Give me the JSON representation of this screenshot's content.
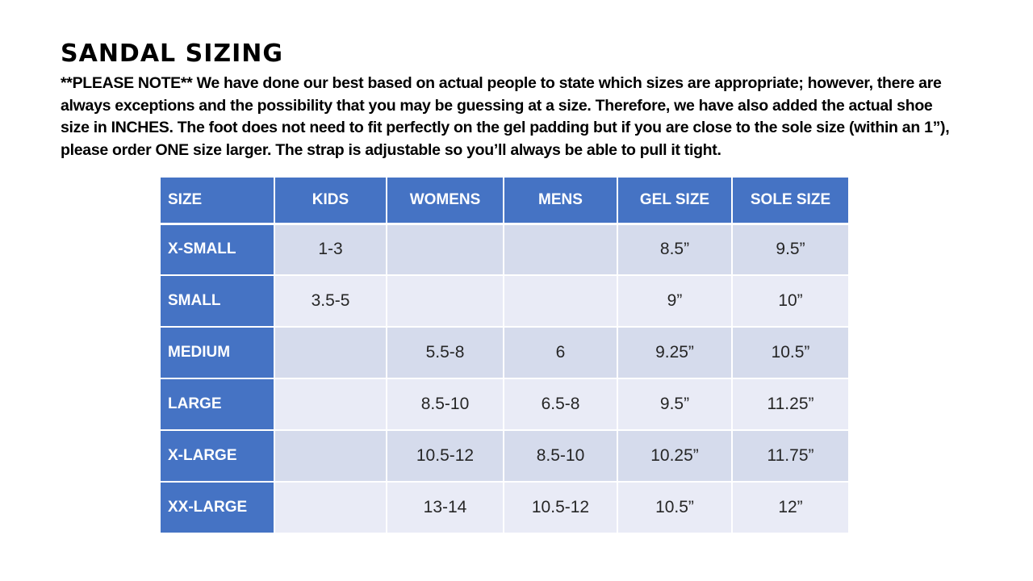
{
  "page": {
    "title": "SANDAL SIZING",
    "note": "**PLEASE NOTE**  We have done our best based on actual people to state which sizes are appropriate; however, there are always exceptions and the possibility that you may be guessing at a size.  Therefore, we have also added the actual shoe size in INCHES.  The foot does not need to fit perfectly on the gel padding but if you are close to the sole size (within an 1”), please order ONE size larger.  The strap is adjustable so you’ll always be able to pull it tight."
  },
  "table": {
    "headers": [
      "SIZE",
      "KIDS",
      "WOMENS",
      "MENS",
      "GEL SIZE",
      "SOLE SIZE"
    ],
    "rows": [
      {
        "size": "X-SMALL",
        "kids": "1-3",
        "womens": "",
        "mens": "",
        "gel": "8.5”",
        "sole": "9.5”"
      },
      {
        "size": "SMALL",
        "kids": "3.5-5",
        "womens": "",
        "mens": "",
        "gel": "9”",
        "sole": "10”"
      },
      {
        "size": "MEDIUM",
        "kids": "",
        "womens": "5.5-8",
        "mens": "6",
        "gel": "9.25”",
        "sole": "10.5”"
      },
      {
        "size": "LARGE",
        "kids": "",
        "womens": "8.5-10",
        "mens": "6.5-8",
        "gel": "9.5”",
        "sole": "11.25”"
      },
      {
        "size": "X-LARGE",
        "kids": "",
        "womens": "10.5-12",
        "mens": "8.5-10",
        "gel": "10.25”",
        "sole": "11.75”"
      },
      {
        "size": "XX-LARGE",
        "kids": "",
        "womens": "13-14",
        "mens": "10.5-12",
        "gel": "10.5”",
        "sole": "12”"
      }
    ],
    "colors": {
      "header_bg": "#4573C4",
      "band_dark": "#D5DBEC",
      "band_light": "#E9EBF6",
      "header_text": "#FFFFFF",
      "body_text": "#262626"
    }
  }
}
